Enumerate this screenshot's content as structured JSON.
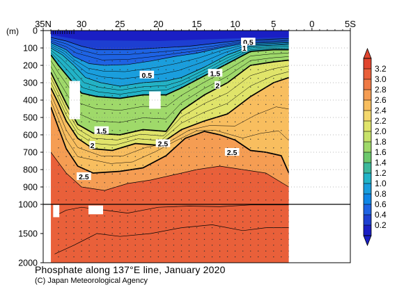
{
  "chart_data": {
    "type": "heatmap",
    "title": "Phosphate along 137°E line, January 2020",
    "credit": "(C) Japan Meteorological Agency",
    "x_axis": {
      "label": "",
      "tick_labels": [
        "35N",
        "30",
        "25",
        "20",
        "15",
        "10",
        "5",
        "0",
        "5S"
      ],
      "tick_values": [
        35,
        30,
        25,
        20,
        15,
        10,
        5,
        0,
        -5
      ],
      "range": [
        35,
        -5
      ],
      "data_extent": [
        34,
        3
      ]
    },
    "y_axis": {
      "label": "(m)",
      "upper_tick_labels": [
        "0",
        "100",
        "200",
        "300",
        "400",
        "500",
        "600",
        "700",
        "800",
        "900",
        "1000"
      ],
      "lower_tick_labels": [
        "1500",
        "2000"
      ],
      "upper_range": [
        0,
        1000
      ],
      "lower_range": [
        1000,
        2000
      ],
      "break_depth": 1000
    },
    "colorbar": {
      "tick_labels": [
        "3.2",
        "3.0",
        "2.8",
        "2.6",
        "2.4",
        "2.2",
        "2.0",
        "1.8",
        "1.6",
        "1.4",
        "1.2",
        "1.0",
        "0.8",
        "0.6",
        "0.4",
        "0.2"
      ],
      "colors": [
        "#e0452e",
        "#e9603a",
        "#ef7a45",
        "#f59d53",
        "#f8be5f",
        "#f4d86d",
        "#e0e46a",
        "#c7e26a",
        "#9fd96a",
        "#6cc86d",
        "#3db89b",
        "#22b3c7",
        "#1a9edd",
        "#0f86e6",
        "#1e63e3",
        "#1d3fd1",
        "#1a1fc4"
      ]
    },
    "contour_labels": [
      {
        "text": "0.5",
        "lat": 8.3,
        "depth": 65
      },
      {
        "text": "1",
        "lat": 8.8,
        "depth": 100
      },
      {
        "text": "0.5",
        "lat": 21.5,
        "depth": 255
      },
      {
        "text": "1.5",
        "lat": 12.6,
        "depth": 245
      },
      {
        "text": "2",
        "lat": 12.3,
        "depth": 315
      },
      {
        "text": "1.5",
        "lat": 27.4,
        "depth": 575
      },
      {
        "text": "2",
        "lat": 28.6,
        "depth": 660
      },
      {
        "text": "2.5",
        "lat": 19.4,
        "depth": 650
      },
      {
        "text": "2.5",
        "lat": 10.4,
        "depth": 700
      },
      {
        "text": "2.5",
        "lat": 29.7,
        "depth": 840
      }
    ],
    "isolines": [
      {
        "level": 0.4,
        "points": [
          [
            34,
            40
          ],
          [
            32,
            60
          ],
          [
            30,
            90
          ],
          [
            28,
            110
          ],
          [
            24,
            110
          ],
          [
            20,
            100
          ],
          [
            16,
            90
          ],
          [
            12,
            70
          ],
          [
            9,
            55
          ],
          [
            6,
            50
          ],
          [
            3,
            45
          ]
        ]
      },
      {
        "level": 0.6,
        "points": [
          [
            34,
            70
          ],
          [
            32,
            110
          ],
          [
            31,
            150
          ],
          [
            29,
            190
          ],
          [
            27,
            200
          ],
          [
            24,
            195
          ],
          [
            21,
            175
          ],
          [
            18,
            150
          ],
          [
            15,
            130
          ],
          [
            12,
            100
          ],
          [
            9,
            75
          ],
          [
            6,
            70
          ],
          [
            3,
            65
          ]
        ]
      },
      {
        "level": 0.8,
        "points": [
          [
            34,
            100
          ],
          [
            32.5,
            140
          ],
          [
            31,
            200
          ],
          [
            29.5,
            270
          ],
          [
            27.5,
            300
          ],
          [
            25,
            320
          ],
          [
            22,
            300
          ],
          [
            19,
            290
          ],
          [
            17,
            270
          ],
          [
            14,
            210
          ],
          [
            11,
            140
          ],
          [
            8,
            90
          ],
          [
            5,
            85
          ],
          [
            3,
            80
          ]
        ]
      },
      {
        "level": 1.0,
        "points": [
          [
            34,
            140
          ],
          [
            33,
            200
          ],
          [
            31.5,
            280
          ],
          [
            30,
            360
          ],
          [
            28,
            380
          ],
          [
            25,
            390
          ],
          [
            22,
            370
          ],
          [
            19,
            370
          ],
          [
            17,
            330
          ],
          [
            14,
            260
          ],
          [
            11,
            190
          ],
          [
            8,
            120
          ],
          [
            5,
            110
          ],
          [
            3,
            110
          ]
        ]
      },
      {
        "level": 1.5,
        "points": [
          [
            34,
            240
          ],
          [
            33,
            330
          ],
          [
            32,
            420
          ],
          [
            30.5,
            540
          ],
          [
            28.5,
            590
          ],
          [
            25,
            600
          ],
          [
            22,
            570
          ],
          [
            19,
            580
          ],
          [
            17,
            460
          ],
          [
            14,
            370
          ],
          [
            11,
            300
          ],
          [
            8,
            200
          ],
          [
            5,
            180
          ],
          [
            3,
            170
          ]
        ]
      },
      {
        "level": 2.0,
        "points": [
          [
            34,
            330
          ],
          [
            33,
            420
          ],
          [
            32,
            520
          ],
          [
            30.5,
            620
          ],
          [
            28.5,
            680
          ],
          [
            26,
            690
          ],
          [
            23,
            650
          ],
          [
            20,
            660
          ],
          [
            17,
            570
          ],
          [
            14,
            520
          ],
          [
            11,
            480
          ],
          [
            8,
            380
          ],
          [
            5,
            300
          ],
          [
            3,
            270
          ]
        ]
      },
      {
        "level": 2.5,
        "points": [
          [
            34,
            440
          ],
          [
            33,
            560
          ],
          [
            32,
            680
          ],
          [
            30.5,
            780
          ],
          [
            28.5,
            820
          ],
          [
            25,
            810
          ],
          [
            22,
            790
          ],
          [
            19,
            720
          ],
          [
            16.5,
            620
          ],
          [
            14,
            580
          ],
          [
            12,
            600
          ],
          [
            10,
            630
          ],
          [
            8,
            690
          ],
          [
            6,
            700
          ],
          [
            4,
            720
          ],
          [
            3,
            820
          ]
        ]
      },
      {
        "level": 2.8,
        "points": [
          [
            34,
            700
          ],
          [
            32,
            820
          ],
          [
            30,
            900
          ],
          [
            27,
            920
          ],
          [
            24,
            880
          ],
          [
            21,
            860
          ],
          [
            18,
            830
          ],
          [
            15,
            800
          ],
          [
            12,
            780
          ],
          [
            9,
            800
          ],
          [
            6,
            820
          ],
          [
            3,
            900
          ]
        ]
      },
      {
        "level": 3.0,
        "points": [
          [
            33.5,
            1200
          ],
          [
            32,
            1100
          ],
          [
            30,
            1050
          ],
          [
            27,
            1100
          ],
          [
            24,
            1150
          ],
          [
            20,
            1050
          ],
          [
            16,
            1030
          ],
          [
            12,
            1040
          ],
          [
            8,
            1010
          ],
          [
            3,
            1010
          ]
        ]
      },
      {
        "level": 3.0,
        "points": [
          [
            33.5,
            1850
          ],
          [
            31,
            1700
          ],
          [
            28,
            1500
          ],
          [
            25,
            1550
          ],
          [
            21,
            1500
          ],
          [
            17,
            1400
          ],
          [
            13,
            1350
          ],
          [
            9,
            1450
          ],
          [
            6,
            1400
          ],
          [
            3,
            1400
          ]
        ]
      }
    ],
    "missing_blocks": [
      {
        "lat": [
          31.6,
          30.2
        ],
        "depth": [
          290,
          510
        ]
      },
      {
        "lat": [
          21.2,
          19.7
        ],
        "depth": [
          350,
          450
        ]
      },
      {
        "lat": [
          29.1,
          27.2
        ],
        "depth": [
          1020,
          1170
        ]
      },
      {
        "lat": [
          33.7,
          32.9
        ],
        "depth": [
          1010,
          1220
        ]
      }
    ],
    "field_levels": [
      {
        "value": 3.1,
        "polygon_depth": "deep"
      }
    ]
  }
}
